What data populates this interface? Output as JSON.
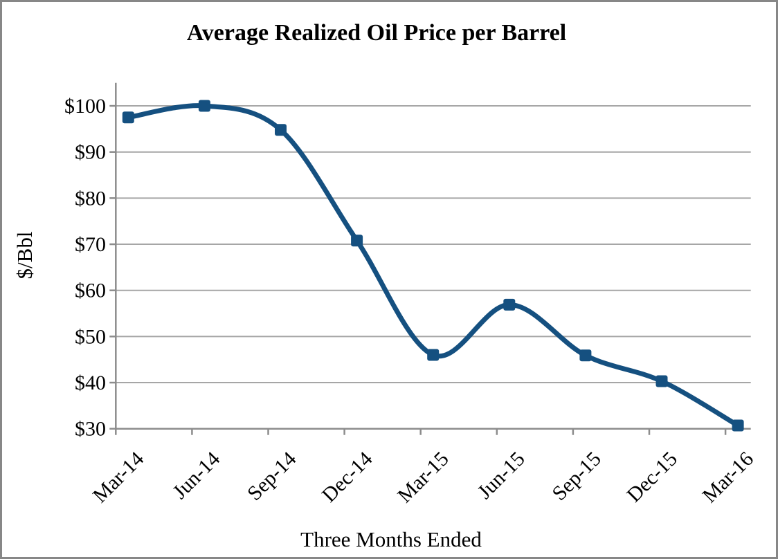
{
  "window": {
    "background_color": "#ffffff",
    "border_color": "#878787"
  },
  "chart_data": {
    "type": "line",
    "title": "Average Realized Oil Price per Barrel",
    "xlabel": "Three Months Ended",
    "ylabel": "$/Bbl",
    "categories": [
      "Mar-14",
      "Jun-14",
      "Sep-14",
      "Dec-14",
      "Mar-15",
      "Jun-15",
      "Sep-15",
      "Dec-15",
      "Mar-16"
    ],
    "values": [
      97.5,
      100,
      94.8,
      70.8,
      46,
      56.9,
      45.9,
      40.3,
      30.7
    ],
    "ylim": [
      30,
      105
    ],
    "y_tick_interval": 10,
    "y_tick_labels": [
      "$30",
      "$40",
      "$50",
      "$60",
      "$70",
      "$80",
      "$90",
      "$100"
    ],
    "y_tick_values": [
      30,
      40,
      50,
      60,
      70,
      80,
      90,
      100
    ],
    "grid": "horizontal",
    "legend": "none",
    "smooth_line": true,
    "marker_shape": "square",
    "line_color": "#155080",
    "marker_color": "#155080",
    "gridline_color": "#a6a6a6",
    "axis_color": "#8c8c8c",
    "text_color": "#000000"
  }
}
